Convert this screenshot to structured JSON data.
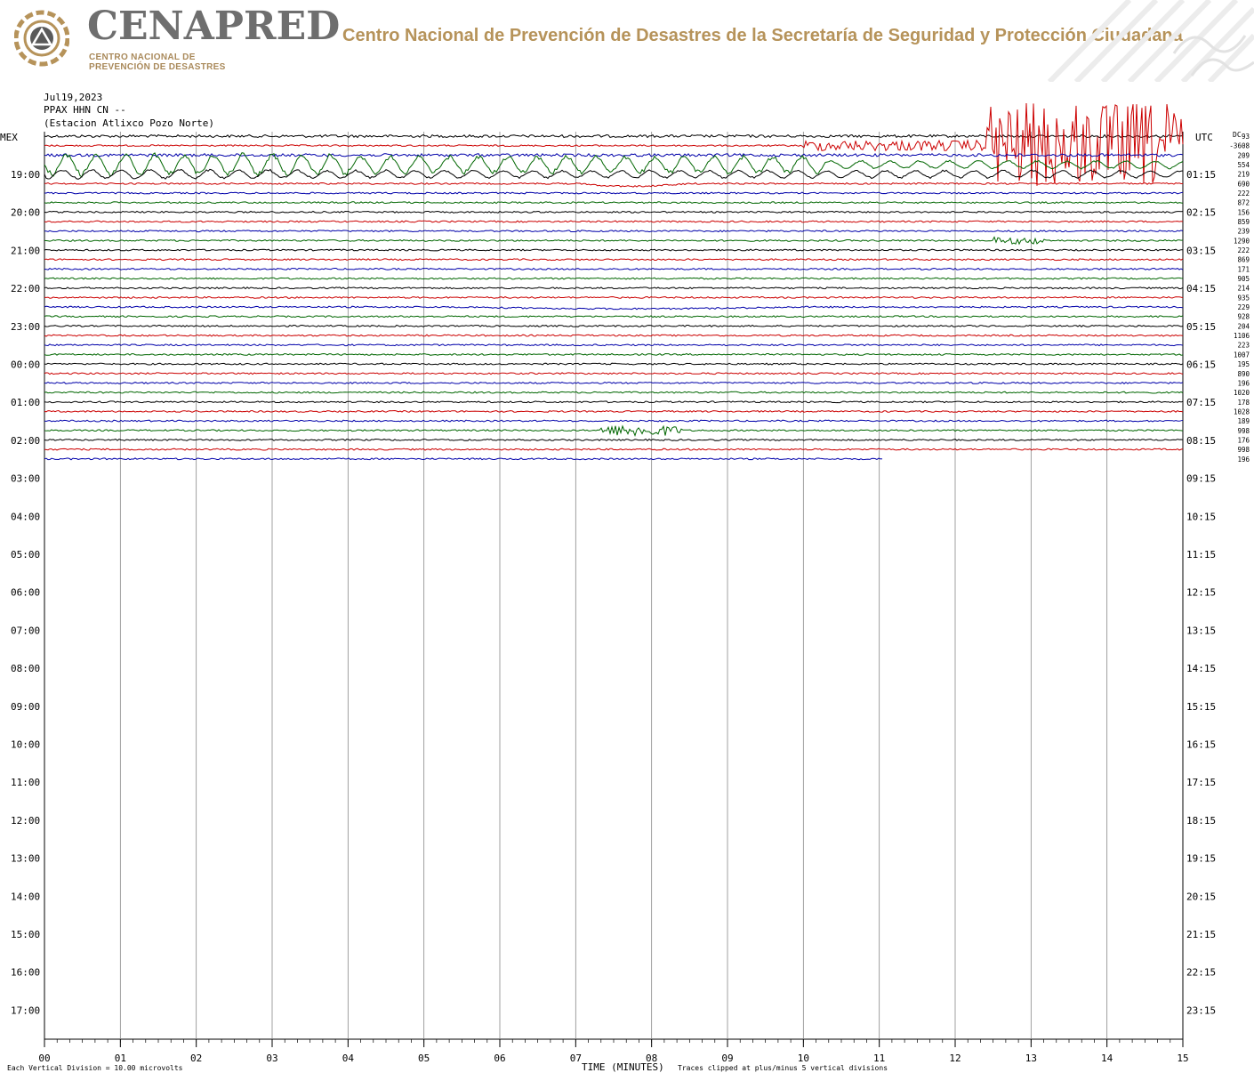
{
  "header": {
    "brand_name": "CENAPRED",
    "brand_sub_1": "CENTRO NACIONAL DE",
    "brand_sub_2": "PREVENCIÓN DE DESASTRES",
    "agency_title": "Centro Nacional de Prevención de Desastres de la Secretaría de Seguridad y Protección Ciudadana",
    "logo_icon": "cenapred-logo-icon",
    "brand_color": "#b6935a"
  },
  "plot_meta": {
    "date": "Jul19,2023",
    "station": "PPAX HHN CN --",
    "station_desc": "(Estacion Atlixco Pozo Norte)",
    "left_zone": "MEX",
    "right_zone": "UTC",
    "dc_label": "DC",
    "footer_left": "Each Vertical Division =   10.00 microvolts",
    "footer_right": "Traces clipped at plus/minus 5 vertical divisions",
    "xlabel": "TIME (MINUTES)"
  },
  "chart_data": {
    "type": "line",
    "title": "",
    "xlabel": "TIME (MINUTES)",
    "xlim": [
      0,
      15
    ],
    "x_ticks": [
      "00",
      "01",
      "02",
      "03",
      "04",
      "05",
      "06",
      "07",
      "08",
      "09",
      "10",
      "11",
      "12",
      "13",
      "14",
      "15"
    ],
    "left_hour_labels": [
      "19:00",
      "20:00",
      "21:00",
      "22:00",
      "23:00",
      "00:00",
      "01:00",
      "02:00",
      "03:00",
      "04:00",
      "05:00",
      "06:00",
      "07:00",
      "08:00",
      "09:00",
      "10:00",
      "11:00",
      "12:00",
      "13:00",
      "14:00",
      "15:00",
      "16:00",
      "17:00"
    ],
    "right_hour_labels": [
      "01:15",
      "02:15",
      "03:15",
      "04:15",
      "05:15",
      "06:15",
      "07:15",
      "08:15",
      "09:15",
      "10:15",
      "11:15",
      "12:15",
      "13:15",
      "14:15",
      "15:15",
      "16:15",
      "17:15",
      "18:15",
      "19:15",
      "20:15",
      "21:15",
      "22:15",
      "23:15"
    ],
    "trace_colors": [
      "#000000",
      "#cc0000",
      "#0000aa",
      "#006600"
    ],
    "dc_offsets": [
      "93",
      "-3608",
      "209",
      "554",
      "219",
      "690",
      "222",
      "872",
      "156",
      "859",
      "239",
      "1290",
      "222",
      "869",
      "171",
      "905",
      "214",
      "935",
      "229",
      "928",
      "204",
      "1106",
      "223",
      "1007",
      "195",
      "890",
      "196",
      "1020",
      "178",
      "1028",
      "189",
      "998",
      "176",
      "998",
      "196"
    ],
    "notable_events": [
      {
        "label": "high-amplitude noise, first hour",
        "x_start": 0,
        "x_end": 15
      },
      {
        "label": "local event",
        "x_start": 7.3,
        "x_end": 8.4
      }
    ],
    "trace_count": 35,
    "last_trace_end_minute": 11.05,
    "grid": true
  }
}
